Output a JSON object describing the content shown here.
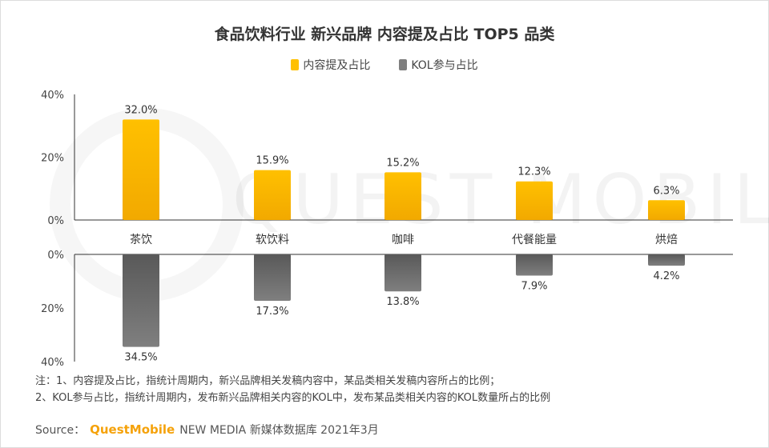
{
  "title": "食品饮料行业 新兴品牌 内容提及占比 TOP5 品类",
  "legend": {
    "series1": "内容提及占比",
    "series2": "KOL参与占比"
  },
  "colors": {
    "series1": "#FFC000",
    "series1_dark": "#F2A900",
    "series2": "#7F7F7F",
    "series2_dark": "#595959",
    "axis": "#333333"
  },
  "watermark": "QUEST MOBILE",
  "chart_data": {
    "type": "bar",
    "categories": [
      "茶饮",
      "软饮料",
      "咖啡",
      "代餐能量",
      "烘焙"
    ],
    "series": [
      {
        "name": "内容提及占比",
        "values": [
          32.0,
          15.9,
          15.2,
          12.3,
          6.3
        ],
        "labels": [
          "32.0%",
          "15.9%",
          "15.2%",
          "12.3%",
          "6.3%"
        ],
        "direction": "up"
      },
      {
        "name": "KOL参与占比",
        "values": [
          34.5,
          17.3,
          13.8,
          7.9,
          4.2
        ],
        "labels": [
          "34.5%",
          "17.3%",
          "13.8%",
          "7.9%",
          "4.2%"
        ],
        "direction": "down"
      }
    ],
    "top_ticks": [
      "40%",
      "20%",
      "0%"
    ],
    "bottom_ticks": [
      "0%",
      "20%",
      "40%"
    ],
    "ylim": [
      0,
      40
    ],
    "grid": false
  },
  "notes": [
    "注：1、内容提及占比，指统计周期内，新兴品牌相关发稿内容中，某品类相关发稿内容所占的比例；",
    "2、KOL参与占比，指统计周期内，发布新兴品牌相关内容的KOL中，发布某品类相关内容的KOL数量所占的比例"
  ],
  "source": {
    "label": "Source：",
    "brand": "QuestMobile",
    "rest": "NEW MEDIA 新媒体数据库 2021年3月"
  }
}
